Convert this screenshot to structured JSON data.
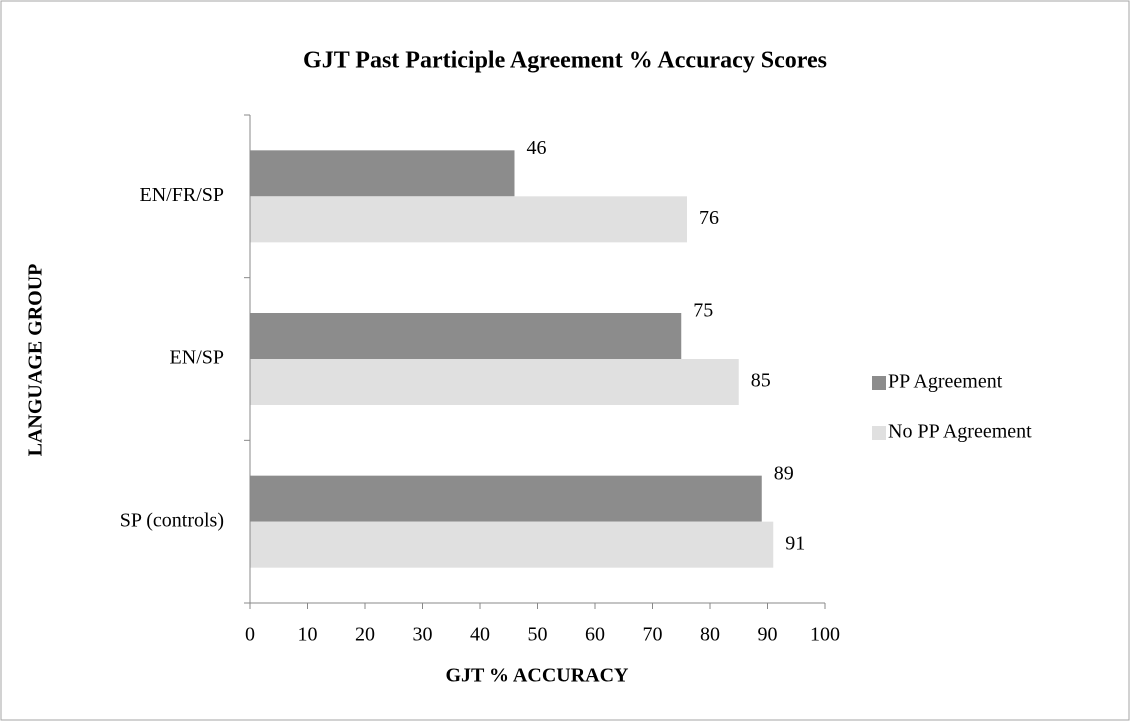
{
  "chart_data": {
    "type": "bar",
    "orientation": "horizontal",
    "title": "GJT Past Participle Agreement % Accuracy Scores",
    "x_label": "GJT % ACCURACY",
    "y_label": "LANGUAGE GROUP",
    "categories": [
      "EN/FR/SP",
      "EN/SP",
      "SP (controls)"
    ],
    "series": [
      {
        "name": "PP Agreement",
        "color": "#8c8c8c",
        "values": [
          46,
          75,
          89
        ]
      },
      {
        "name": "No PP Agreement",
        "color": "#e0e0e0",
        "values": [
          76,
          85,
          91
        ]
      }
    ],
    "xlim": [
      0,
      100
    ],
    "xticks": [
      0,
      10,
      20,
      30,
      40,
      50,
      60,
      70,
      80,
      90,
      100
    ],
    "legend": "right",
    "grid": false
  }
}
